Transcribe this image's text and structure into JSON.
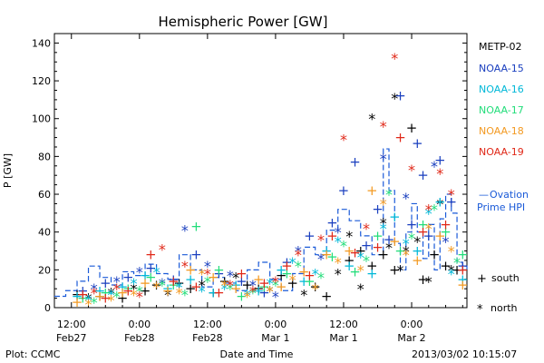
{
  "chart_data": {
    "type": "scatter",
    "title": "Hemispheric Power [GW]",
    "ylabel": "P [GW]",
    "xlabel": "Date and Time",
    "ylim": [
      0,
      145
    ],
    "xlim_hours_label": "Feb27 09:00 to Mar 2 09:45",
    "y_ticks": [
      0,
      20,
      40,
      60,
      80,
      100,
      120,
      140
    ],
    "x_ticks": [
      {
        "time": "12:00",
        "date": "Feb27"
      },
      {
        "time": "0:00",
        "date": "Feb28"
      },
      {
        "time": "12:00",
        "date": "Feb28"
      },
      {
        "time": "0:00",
        "date": "Mar 1"
      },
      {
        "time": "12:00",
        "date": "Mar 1"
      },
      {
        "time": "0:00",
        "date": "Mar 2"
      }
    ],
    "grid": false,
    "legend": {
      "placement": "right",
      "satellites": [
        {
          "name": "METP-02",
          "color": "#000000"
        },
        {
          "name": "NOAA-15",
          "color": "#1a3fbf"
        },
        {
          "name": "NOAA-16",
          "color": "#00b8d8"
        },
        {
          "name": "NOAA-17",
          "color": "#22dd7a"
        },
        {
          "name": "NOAA-18",
          "color": "#f39a22"
        },
        {
          "name": "NOAA-19",
          "color": "#e02818"
        }
      ],
      "ovation": {
        "name": "Ovation Prime HPI",
        "line": "—",
        "color": "#1a5ad8"
      },
      "markers": [
        {
          "symbol": "+",
          "label": "south"
        },
        {
          "symbol": "*",
          "label": "north"
        }
      ]
    },
    "footer": {
      "left": "Plot: CCMC",
      "right": "2013/03/02 10:15:07"
    },
    "x_range_hours": [
      -3,
      69.75
    ],
    "series": [
      {
        "name": "METP-02",
        "color": "#000000",
        "south": [
          [
            1,
            7
          ],
          [
            5,
            6
          ],
          [
            9,
            5
          ],
          [
            13,
            9
          ],
          [
            15,
            12
          ],
          [
            19,
            13
          ],
          [
            21,
            10
          ],
          [
            25,
            8
          ],
          [
            27,
            14
          ],
          [
            31,
            12
          ],
          [
            33,
            10
          ],
          [
            37,
            17
          ],
          [
            39,
            13
          ],
          [
            43,
            11
          ],
          [
            45,
            6
          ],
          [
            49,
            25
          ],
          [
            51,
            30
          ],
          [
            53,
            22
          ],
          [
            55,
            28
          ],
          [
            57,
            20
          ],
          [
            60,
            95
          ],
          [
            62,
            15
          ],
          [
            64,
            28
          ],
          [
            66,
            22
          ],
          [
            68,
            20
          ]
        ],
        "north": [
          [
            3,
            5
          ],
          [
            7,
            8
          ],
          [
            11,
            10
          ],
          [
            17,
            7
          ],
          [
            23,
            12
          ],
          [
            29,
            16
          ],
          [
            35,
            9
          ],
          [
            41,
            7
          ],
          [
            47,
            18
          ],
          [
            49,
            38
          ],
          [
            51,
            10
          ],
          [
            53,
            100
          ],
          [
            55,
            45
          ],
          [
            56,
            32
          ],
          [
            57,
            111
          ],
          [
            58,
            20
          ],
          [
            59,
            30
          ],
          [
            61,
            35
          ],
          [
            63,
            14
          ],
          [
            65,
            55
          ],
          [
            67,
            20
          ]
        ]
      },
      {
        "name": "NOAA-15",
        "color": "#1a3fbf",
        "south": [
          [
            2,
            9
          ],
          [
            6,
            13
          ],
          [
            10,
            16
          ],
          [
            14,
            21
          ],
          [
            18,
            15
          ],
          [
            22,
            28
          ],
          [
            26,
            18
          ],
          [
            30,
            14
          ],
          [
            34,
            8
          ],
          [
            38,
            24
          ],
          [
            42,
            38
          ],
          [
            46,
            45
          ],
          [
            48,
            62
          ],
          [
            50,
            77
          ],
          [
            52,
            33
          ],
          [
            54,
            52
          ],
          [
            56,
            36
          ],
          [
            58,
            112
          ],
          [
            60,
            44
          ],
          [
            61,
            87
          ],
          [
            62,
            70
          ],
          [
            63,
            38
          ],
          [
            65,
            78
          ],
          [
            67,
            56
          ],
          [
            69,
            22
          ]
        ],
        "north": [
          [
            4,
            10
          ],
          [
            8,
            14
          ],
          [
            12,
            19
          ],
          [
            16,
            13
          ],
          [
            20,
            41
          ],
          [
            24,
            22
          ],
          [
            28,
            17
          ],
          [
            32,
            12
          ],
          [
            36,
            6
          ],
          [
            40,
            30
          ],
          [
            44,
            26
          ],
          [
            47,
            40
          ],
          [
            55,
            79
          ],
          [
            59,
            58
          ],
          [
            64,
            75
          ],
          [
            66,
            35
          ]
        ]
      },
      {
        "name": "NOAA-16",
        "color": "#00b8d8",
        "south": [
          [
            1,
            6
          ],
          [
            5,
            9
          ],
          [
            9,
            11
          ],
          [
            13,
            17
          ],
          [
            17,
            10
          ],
          [
            21,
            15
          ],
          [
            25,
            8
          ],
          [
            29,
            12
          ],
          [
            33,
            9
          ],
          [
            37,
            20
          ],
          [
            41,
            14
          ],
          [
            45,
            30
          ],
          [
            49,
            22
          ],
          [
            53,
            18
          ],
          [
            57,
            48
          ],
          [
            61,
            30
          ],
          [
            65,
            56
          ],
          [
            69,
            15
          ]
        ],
        "north": [
          [
            3,
            4
          ],
          [
            7,
            7
          ],
          [
            11,
            13
          ],
          [
            15,
            19
          ],
          [
            19,
            11
          ],
          [
            23,
            9
          ],
          [
            27,
            10
          ],
          [
            31,
            7
          ],
          [
            35,
            13
          ],
          [
            39,
            24
          ],
          [
            43,
            18
          ],
          [
            47,
            35
          ],
          [
            51,
            27
          ],
          [
            55,
            42
          ],
          [
            59,
            34
          ],
          [
            63,
            50
          ],
          [
            67,
            18
          ]
        ]
      },
      {
        "name": "NOAA-17",
        "color": "#22dd7a",
        "south": [
          [
            2,
            5
          ],
          [
            6,
            8
          ],
          [
            10,
            10
          ],
          [
            14,
            16
          ],
          [
            18,
            12
          ],
          [
            22,
            43
          ],
          [
            26,
            20
          ],
          [
            30,
            6
          ],
          [
            34,
            11
          ],
          [
            38,
            18
          ],
          [
            42,
            14
          ],
          [
            46,
            27
          ],
          [
            50,
            19
          ],
          [
            54,
            38
          ],
          [
            58,
            30
          ],
          [
            62,
            44
          ],
          [
            66,
            40
          ],
          [
            69,
            28
          ]
        ],
        "north": [
          [
            4,
            3
          ],
          [
            8,
            6
          ],
          [
            12,
            9
          ],
          [
            16,
            12
          ],
          [
            20,
            7
          ],
          [
            24,
            14
          ],
          [
            28,
            10
          ],
          [
            32,
            8
          ],
          [
            36,
            12
          ],
          [
            40,
            22
          ],
          [
            44,
            16
          ],
          [
            48,
            33
          ],
          [
            52,
            25
          ],
          [
            56,
            60
          ],
          [
            60,
            37
          ],
          [
            64,
            52
          ],
          [
            68,
            24
          ]
        ]
      },
      {
        "name": "NOAA-18",
        "color": "#f39a22",
        "south": [
          [
            1,
            3
          ],
          [
            5,
            6
          ],
          [
            9,
            8
          ],
          [
            13,
            13
          ],
          [
            17,
            9
          ],
          [
            21,
            20
          ],
          [
            25,
            16
          ],
          [
            29,
            10
          ],
          [
            33,
            15
          ],
          [
            37,
            11
          ],
          [
            41,
            19
          ],
          [
            45,
            28
          ],
          [
            49,
            30
          ],
          [
            53,
            62
          ],
          [
            57,
            35
          ],
          [
            61,
            25
          ],
          [
            65,
            38
          ],
          [
            69,
            12
          ]
        ],
        "north": [
          [
            3,
            2
          ],
          [
            7,
            4
          ],
          [
            11,
            7
          ],
          [
            15,
            11
          ],
          [
            19,
            8
          ],
          [
            23,
            18
          ],
          [
            27,
            12
          ],
          [
            31,
            6
          ],
          [
            35,
            9
          ],
          [
            39,
            15
          ],
          [
            43,
            10
          ],
          [
            47,
            24
          ],
          [
            51,
            20
          ],
          [
            55,
            55
          ],
          [
            59,
            28
          ],
          [
            63,
            42
          ],
          [
            67,
            30
          ]
        ]
      },
      {
        "name": "NOAA-19",
        "color": "#e02818",
        "south": [
          [
            2,
            7
          ],
          [
            6,
            5
          ],
          [
            10,
            9
          ],
          [
            14,
            28
          ],
          [
            18,
            14
          ],
          [
            22,
            11
          ],
          [
            26,
            8
          ],
          [
            30,
            18
          ],
          [
            34,
            13
          ],
          [
            38,
            22
          ],
          [
            42,
            17
          ],
          [
            46,
            38
          ],
          [
            50,
            29
          ],
          [
            54,
            32
          ],
          [
            58,
            90
          ],
          [
            62,
            40
          ],
          [
            66,
            44
          ],
          [
            69,
            20
          ]
        ],
        "north": [
          [
            4,
            8
          ],
          [
            8,
            10
          ],
          [
            12,
            6
          ],
          [
            16,
            31
          ],
          [
            20,
            22
          ],
          [
            24,
            18
          ],
          [
            28,
            12
          ],
          [
            32,
            9
          ],
          [
            36,
            14
          ],
          [
            40,
            28
          ],
          [
            44,
            36
          ],
          [
            48,
            89
          ],
          [
            52,
            42
          ],
          [
            55,
            96
          ],
          [
            57,
            132
          ],
          [
            60,
            73
          ],
          [
            63,
            52
          ],
          [
            65,
            71
          ],
          [
            67,
            60
          ]
        ]
      }
    ],
    "ovation_hpi": [
      [
        -3,
        6
      ],
      [
        -1,
        9
      ],
      [
        1,
        14
      ],
      [
        3,
        22
      ],
      [
        5,
        16
      ],
      [
        7,
        12
      ],
      [
        9,
        19
      ],
      [
        11,
        17
      ],
      [
        13,
        23
      ],
      [
        15,
        18
      ],
      [
        17,
        15
      ],
      [
        19,
        28
      ],
      [
        21,
        20
      ],
      [
        23,
        11
      ],
      [
        25,
        16
      ],
      [
        27,
        13
      ],
      [
        29,
        9
      ],
      [
        31,
        20
      ],
      [
        33,
        24
      ],
      [
        35,
        15
      ],
      [
        37,
        9
      ],
      [
        39,
        18
      ],
      [
        41,
        32
      ],
      [
        43,
        28
      ],
      [
        45,
        41
      ],
      [
        47,
        52
      ],
      [
        49,
        46
      ],
      [
        51,
        38
      ],
      [
        53,
        28
      ],
      [
        55,
        84
      ],
      [
        56,
        62
      ],
      [
        57,
        34
      ],
      [
        58,
        20
      ],
      [
        59,
        40
      ],
      [
        60,
        55
      ],
      [
        61,
        40
      ],
      [
        62,
        26
      ],
      [
        63,
        44
      ],
      [
        64,
        20
      ],
      [
        65,
        47
      ],
      [
        66,
        60
      ],
      [
        67,
        50
      ],
      [
        68,
        24
      ],
      [
        69,
        22
      ],
      [
        69.75,
        20
      ]
    ]
  }
}
